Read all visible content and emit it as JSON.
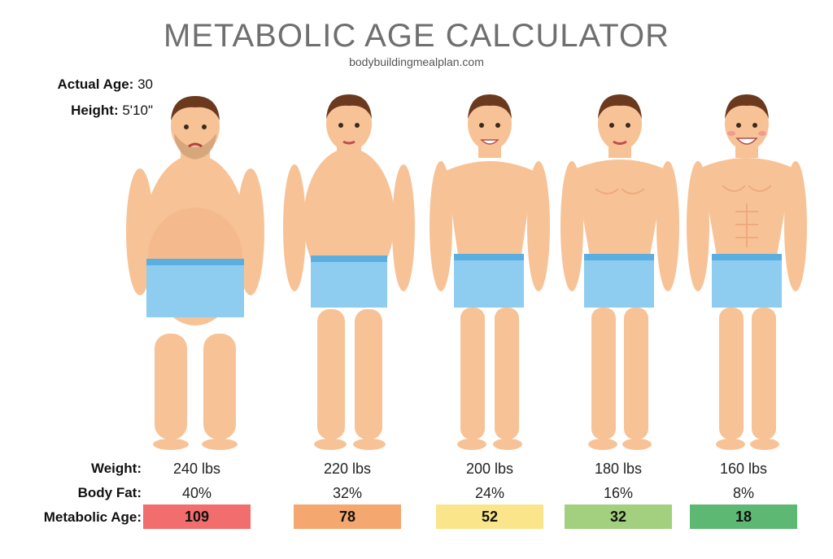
{
  "title": "METABOLIC AGE CALCULATOR",
  "source": "bodybuildingmealplan.com",
  "info": {
    "age_label": "Actual Age:",
    "age_value": "30",
    "height_label": "Height:",
    "height_value": "5'10\""
  },
  "labels": {
    "weight": "Weight:",
    "body_fat": "Body Fat:",
    "metabolic_age": "Metabolic Age:"
  },
  "figures": [
    {
      "weight": "240 lbs",
      "body_fat": "40%",
      "metabolic_age": "109",
      "color": "#f26d6d"
    },
    {
      "weight": "220 lbs",
      "body_fat": "32%",
      "metabolic_age": "78",
      "color": "#f4a76e"
    },
    {
      "weight": "200 lbs",
      "body_fat": "24%",
      "metabolic_age": "52",
      "color": "#fbe58a"
    },
    {
      "weight": "180 lbs",
      "body_fat": "16%",
      "metabolic_age": "32",
      "color": "#a3d07f"
    },
    {
      "weight": "160 lbs",
      "body_fat": "8%",
      "metabolic_age": "18",
      "color": "#5db873"
    }
  ],
  "colors": {
    "skin": "#f7c396",
    "skin_shadow": "#eeaa7e",
    "hair": "#6b3a1e",
    "shorts": "#8fcdf0",
    "shorts_band": "#5aaee0"
  }
}
